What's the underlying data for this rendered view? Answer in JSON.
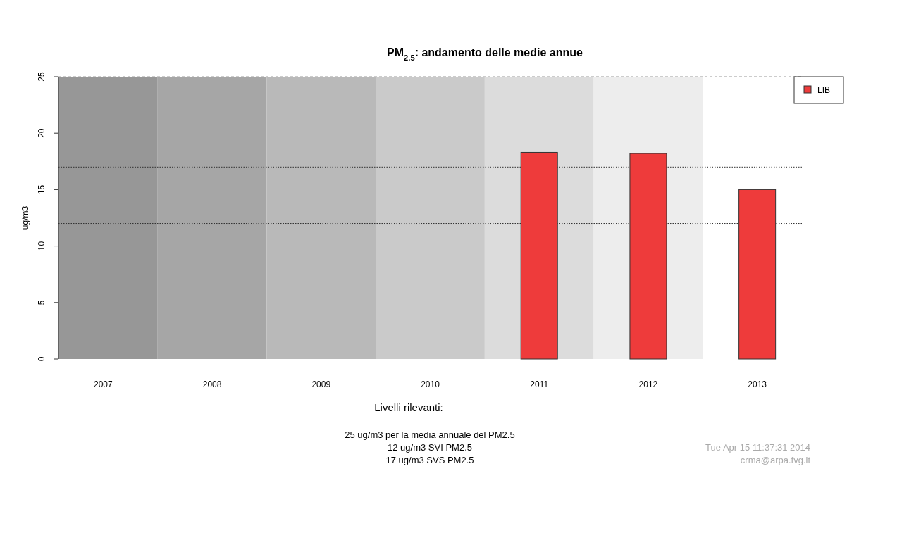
{
  "chart_data": {
    "type": "bar",
    "title": "PM$_{2.5}$: andamento delle medie annue",
    "ylabel": "ug/m3",
    "categories": [
      "2007",
      "2008",
      "2009",
      "2010",
      "2011",
      "2012",
      "2013"
    ],
    "series": [
      {
        "name": "LIB",
        "color": "#ee3b3b",
        "values": [
          null,
          null,
          null,
          null,
          18.3,
          18.2,
          15.0
        ]
      }
    ],
    "ylim": [
      0,
      25
    ],
    "yticks": [
      0,
      5,
      10,
      15,
      20,
      25
    ],
    "ref_lines": [
      {
        "axis": "y",
        "value": 25,
        "line_style": "dashed",
        "color": "#999999"
      },
      {
        "axis": "y",
        "value": 17,
        "line_style": "dotted",
        "color": "#333333"
      },
      {
        "axis": "y",
        "value": 12,
        "line_style": "dotted",
        "color": "#333333"
      }
    ],
    "bands": [
      {
        "axis": "x",
        "from": "2007",
        "to": "2007",
        "color": "#979797"
      },
      {
        "axis": "x",
        "from": "2008",
        "to": "2008",
        "color": "#a6a6a6"
      },
      {
        "axis": "x",
        "from": "2009",
        "to": "2009",
        "color": "#b9b9b9"
      },
      {
        "axis": "x",
        "from": "2010",
        "to": "2010",
        "color": "#cacaca"
      },
      {
        "axis": "x",
        "from": "2011",
        "to": "2011",
        "color": "#dcdcdc"
      },
      {
        "axis": "x",
        "from": "2012",
        "to": "2012",
        "color": "#ededed"
      }
    ],
    "legend": "top right",
    "annotations": [
      "Livelli rilevanti:",
      "25 ug/m3 per la media annuale del PM2.5",
      "12 ug/m3 SVI PM2.5",
      "17 ug/m3 SVS PM2.5",
      "Tue Apr 15 11:37:31 2014",
      "crma@arpa.fvg.it"
    ]
  }
}
